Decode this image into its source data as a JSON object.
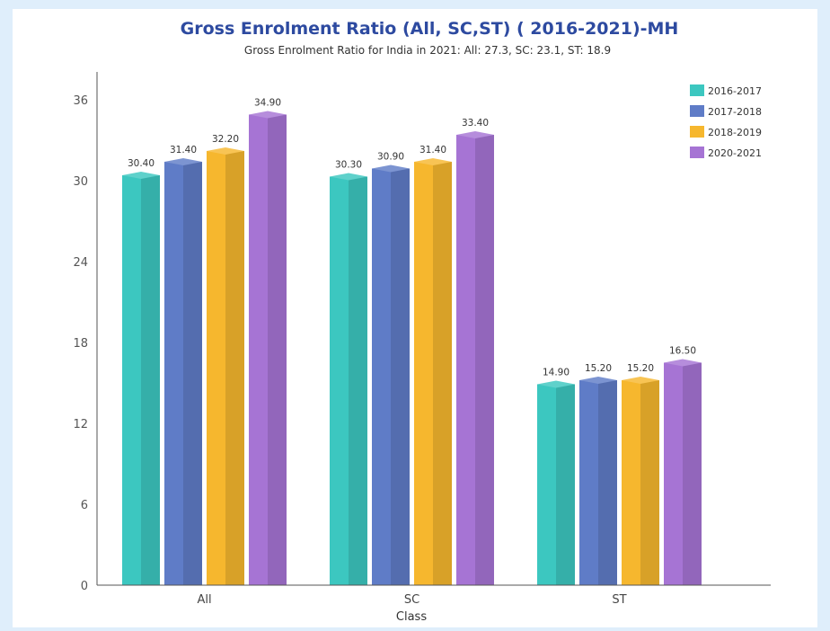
{
  "chart_data": {
    "type": "bar",
    "title": "Gross Enrolment Ratio (All, SC,ST) ( 2016-2021)-MH",
    "subtitle": "Gross Enrolment Ratio for India in 2021: All: 27.3, SC: 23.1, ST: 18.9",
    "xlabel": "Class",
    "ylabel": "",
    "categories": [
      "All",
      "SC",
      "ST"
    ],
    "series": [
      {
        "name": "2016-2017",
        "color": "#3cc7c0",
        "values": [
          30.4,
          30.3,
          14.9
        ],
        "labels": [
          "30.40",
          "30.30",
          "14.90"
        ]
      },
      {
        "name": "2017-2018",
        "color": "#5f7cc7",
        "values": [
          31.4,
          30.9,
          15.2
        ],
        "labels": [
          "31.40",
          "30.90",
          "15.20"
        ]
      },
      {
        "name": "2018-2019",
        "color": "#f6b72e",
        "values": [
          32.2,
          31.4,
          15.2
        ],
        "labels": [
          "32.20",
          "31.40",
          "15.20"
        ]
      },
      {
        "name": "2020-2021",
        "color": "#a674d4",
        "values": [
          34.9,
          33.4,
          16.5
        ],
        "labels": [
          "34.90",
          "33.40",
          "16.50"
        ]
      }
    ],
    "ylim": [
      0,
      36
    ],
    "yticks": [
      "0",
      "6",
      "12",
      "18",
      "24",
      "30",
      "36"
    ],
    "grid": false,
    "legend_position": "top-right"
  }
}
